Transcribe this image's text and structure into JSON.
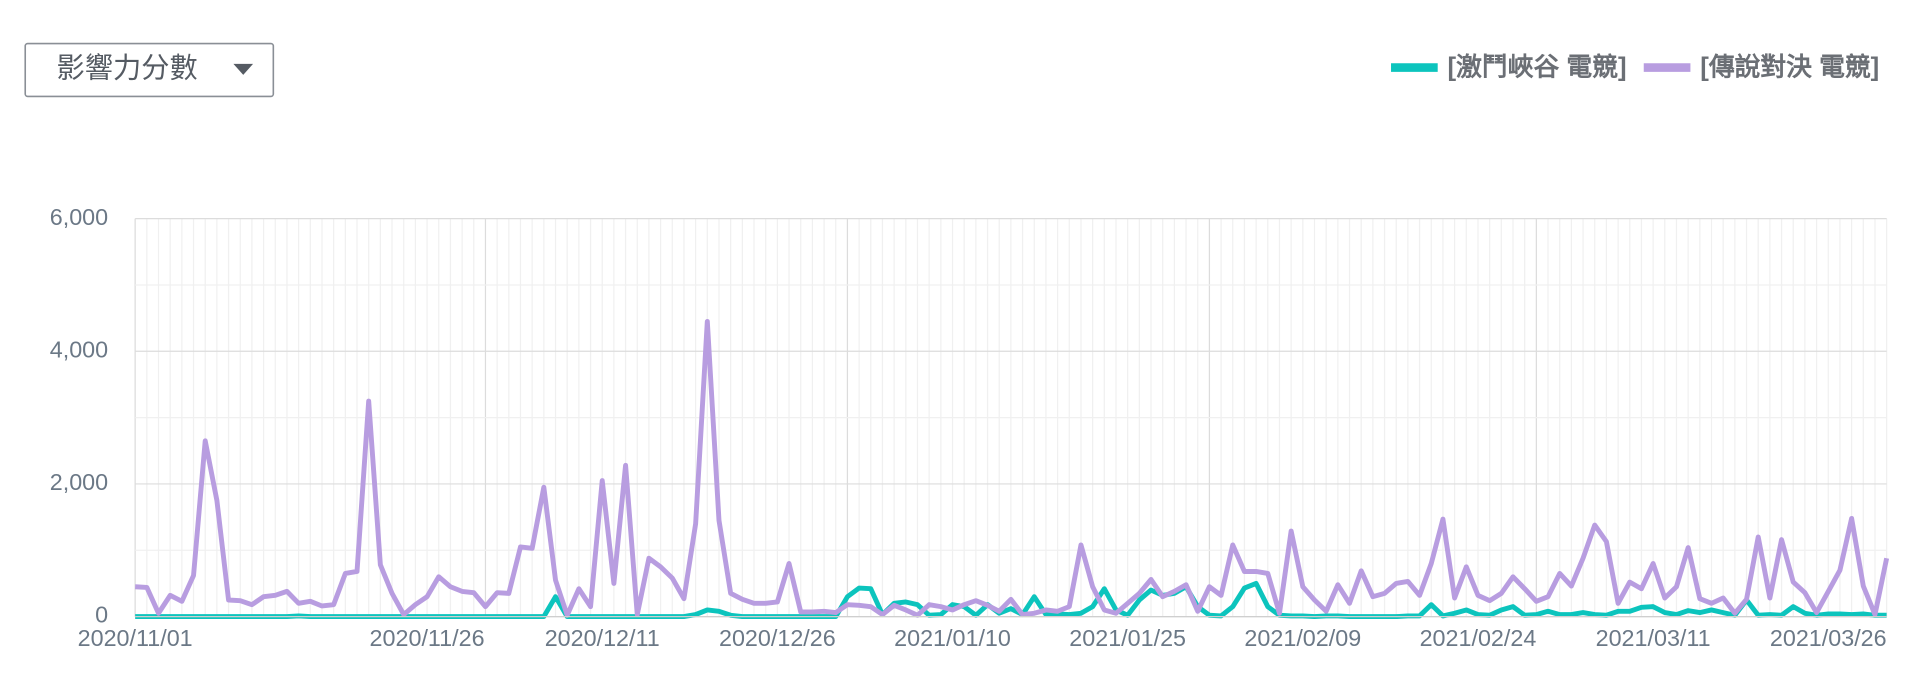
{
  "chart_data": {
    "type": "line",
    "dropdown": "影響力分數",
    "x": [
      "2020/11/01",
      "2020/11/02",
      "2020/11/03",
      "2020/11/04",
      "2020/11/05",
      "2020/11/06",
      "2020/11/07",
      "2020/11/08",
      "2020/11/09",
      "2020/11/10",
      "2020/11/11",
      "2020/11/12",
      "2020/11/13",
      "2020/11/14",
      "2020/11/15",
      "2020/11/16",
      "2020/11/17",
      "2020/11/18",
      "2020/11/19",
      "2020/11/20",
      "2020/11/21",
      "2020/11/22",
      "2020/11/23",
      "2020/11/24",
      "2020/11/25",
      "2020/11/26",
      "2020/11/27",
      "2020/11/28",
      "2020/11/29",
      "2020/11/30",
      "2020/12/01",
      "2020/12/02",
      "2020/12/03",
      "2020/12/04",
      "2020/12/05",
      "2020/12/06",
      "2020/12/07",
      "2020/12/08",
      "2020/12/09",
      "2020/12/10",
      "2020/12/11",
      "2020/12/12",
      "2020/12/13",
      "2020/12/14",
      "2020/12/15",
      "2020/12/16",
      "2020/12/17",
      "2020/12/18",
      "2020/12/19",
      "2020/12/20",
      "2020/12/21",
      "2020/12/22",
      "2020/12/23",
      "2020/12/24",
      "2020/12/25",
      "2020/12/26",
      "2020/12/27",
      "2020/12/28",
      "2020/12/29",
      "2020/12/30",
      "2020/12/31",
      "2021/01/01",
      "2021/01/02",
      "2021/01/03",
      "2021/01/04",
      "2021/01/05",
      "2021/01/06",
      "2021/01/07",
      "2021/01/08",
      "2021/01/09",
      "2021/01/10",
      "2021/01/11",
      "2021/01/12",
      "2021/01/13",
      "2021/01/14",
      "2021/01/15",
      "2021/01/16",
      "2021/01/17",
      "2021/01/18",
      "2021/01/19",
      "2021/01/20",
      "2021/01/21",
      "2021/01/22",
      "2021/01/23",
      "2021/01/24",
      "2021/01/25",
      "2021/01/26",
      "2021/01/27",
      "2021/01/28",
      "2021/01/29",
      "2021/01/30",
      "2021/01/31",
      "2021/02/01",
      "2021/02/02",
      "2021/02/03",
      "2021/02/04",
      "2021/02/05",
      "2021/02/06",
      "2021/02/07",
      "2021/02/08",
      "2021/02/09",
      "2021/02/10",
      "2021/02/11",
      "2021/02/12",
      "2021/02/13",
      "2021/02/14",
      "2021/02/15",
      "2021/02/16",
      "2021/02/17",
      "2021/02/18",
      "2021/02/19",
      "2021/02/20",
      "2021/02/21",
      "2021/02/22",
      "2021/02/23",
      "2021/02/24",
      "2021/02/25",
      "2021/02/26",
      "2021/02/27",
      "2021/02/28",
      "2021/03/01",
      "2021/03/02",
      "2021/03/03",
      "2021/03/04",
      "2021/03/05",
      "2021/03/06",
      "2021/03/07",
      "2021/03/08",
      "2021/03/09",
      "2021/03/10",
      "2021/03/11",
      "2021/03/12",
      "2021/03/13",
      "2021/03/14",
      "2021/03/15",
      "2021/03/16",
      "2021/03/17",
      "2021/03/18",
      "2021/03/19",
      "2021/03/20",
      "2021/03/21",
      "2021/03/22",
      "2021/03/23",
      "2021/03/24",
      "2021/03/25",
      "2021/03/26",
      "2021/03/27",
      "2021/03/28",
      "2021/03/29",
      "2021/03/30",
      "2021/03/31"
    ],
    "xticks": [
      "2020/11/01",
      "2020/11/26",
      "2020/12/11",
      "2020/12/26",
      "2021/01/10",
      "2021/01/25",
      "2021/02/09",
      "2021/02/24",
      "2021/03/11",
      "2021/03/26"
    ],
    "ylim": [
      0,
      6000
    ],
    "yticks": [
      0,
      {
        "value": 2000,
        "label": "2,000"
      },
      {
        "value": 4000,
        "label": "4,000"
      },
      {
        "value": 6000,
        "label": "6,000"
      }
    ],
    "grid": true,
    "legend": "top-right",
    "series": [
      {
        "name": "[激鬥峽谷 電競]",
        "color": "#0cc4bd",
        "values": [
          0,
          0,
          0,
          0,
          0,
          0,
          0,
          0,
          0,
          0,
          0,
          0,
          0,
          0,
          10,
          0,
          0,
          0,
          0,
          0,
          0,
          0,
          0,
          0,
          0,
          0,
          0,
          0,
          0,
          0,
          0,
          0,
          0,
          0,
          0,
          0,
          300,
          0,
          0,
          0,
          0,
          0,
          0,
          0,
          0,
          0,
          0,
          0,
          30,
          100,
          80,
          20,
          0,
          0,
          0,
          0,
          0,
          0,
          0,
          0,
          0,
          300,
          430,
          420,
          30,
          200,
          220,
          180,
          20,
          30,
          180,
          150,
          20,
          180,
          50,
          120,
          30,
          300,
          30,
          40,
          30,
          50,
          150,
          420,
          100,
          20,
          250,
          400,
          320,
          350,
          450,
          150,
          20,
          10,
          150,
          430,
          500,
          150,
          20,
          10,
          10,
          0,
          10,
          10,
          0,
          0,
          0,
          0,
          0,
          10,
          10,
          180,
          10,
          50,
          100,
          30,
          20,
          100,
          150,
          20,
          30,
          80,
          30,
          30,
          60,
          30,
          20,
          80,
          80,
          140,
          150,
          60,
          30,
          90,
          60,
          100,
          60,
          20,
          250,
          20,
          30,
          20,
          150,
          50,
          20,
          40,
          40,
          30,
          40,
          20,
          20
        ]
      },
      {
        "name": "[傳說對決 電競]",
        "color": "#b89de0",
        "values": [
          450,
          440,
          50,
          320,
          230,
          620,
          2650,
          1750,
          250,
          240,
          180,
          300,
          320,
          380,
          200,
          230,
          160,
          180,
          650,
          680,
          3250,
          780,
          350,
          30,
          180,
          300,
          600,
          450,
          380,
          360,
          150,
          360,
          350,
          1050,
          1030,
          1950,
          550,
          20,
          420,
          150,
          2050,
          500,
          2280,
          30,
          880,
          750,
          580,
          270,
          1400,
          4450,
          1450,
          350,
          260,
          200,
          200,
          220,
          800,
          70,
          70,
          80,
          60,
          180,
          170,
          150,
          30,
          170,
          100,
          20,
          180,
          150,
          100,
          180,
          240,
          170,
          80,
          260,
          30,
          50,
          100,
          80,
          150,
          1080,
          450,
          100,
          50,
          200,
          350,
          560,
          300,
          380,
          480,
          80,
          450,
          320,
          1080,
          680,
          680,
          650,
          50,
          1290,
          450,
          250,
          80,
          480,
          200,
          690,
          300,
          350,
          500,
          530,
          320,
          800,
          1470,
          280,
          750,
          320,
          240,
          350,
          600,
          420,
          230,
          300,
          650,
          460,
          880,
          1380,
          1130,
          200,
          520,
          420,
          800,
          280,
          450,
          1040,
          270,
          200,
          280,
          50,
          260,
          1200,
          280,
          1160,
          520,
          360,
          60,
          380,
          700,
          1480,
          460,
          30,
          880
        ]
      }
    ]
  }
}
